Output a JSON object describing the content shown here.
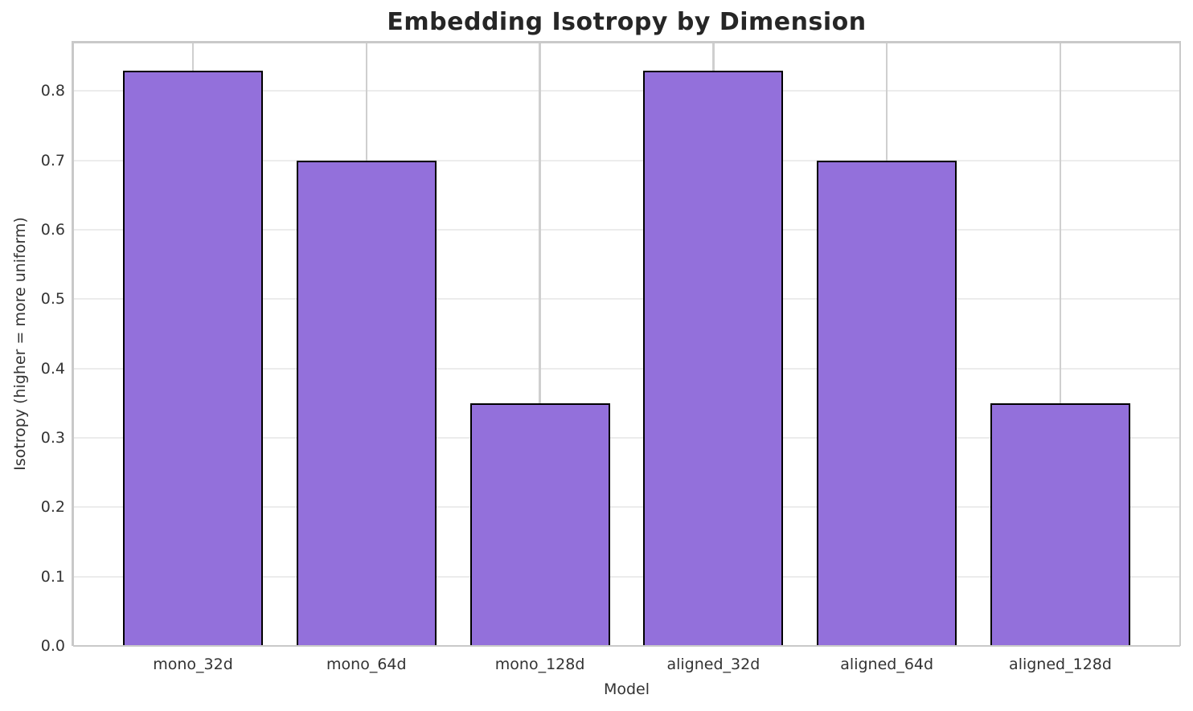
{
  "chart_data": {
    "type": "bar",
    "title": "Embedding Isotropy by Dimension",
    "xlabel": "Model",
    "ylabel": "Isotropy (higher = more uniform)",
    "categories": [
      "mono_32d",
      "mono_64d",
      "mono_128d",
      "aligned_32d",
      "aligned_64d",
      "aligned_128d"
    ],
    "values": [
      0.83,
      0.7,
      0.35,
      0.83,
      0.7,
      0.35
    ],
    "ylim": [
      0.0,
      0.87
    ],
    "yticks": [
      0.0,
      0.1,
      0.2,
      0.3,
      0.4,
      0.5,
      0.6,
      0.7,
      0.8
    ],
    "ytick_labels": [
      "0.0",
      "0.1",
      "0.2",
      "0.3",
      "0.4",
      "0.5",
      "0.6",
      "0.7",
      "0.8"
    ],
    "grid": true,
    "legend": false,
    "colors": {
      "bar_fill": "#9370DB",
      "bar_edge": "#000000",
      "hgrid": "#ececec",
      "vgrid": "#cfcfcf",
      "spine": "#c9c9c9",
      "tick_text": "#333333",
      "title_text": "#262626",
      "background": "#ffffff"
    }
  }
}
